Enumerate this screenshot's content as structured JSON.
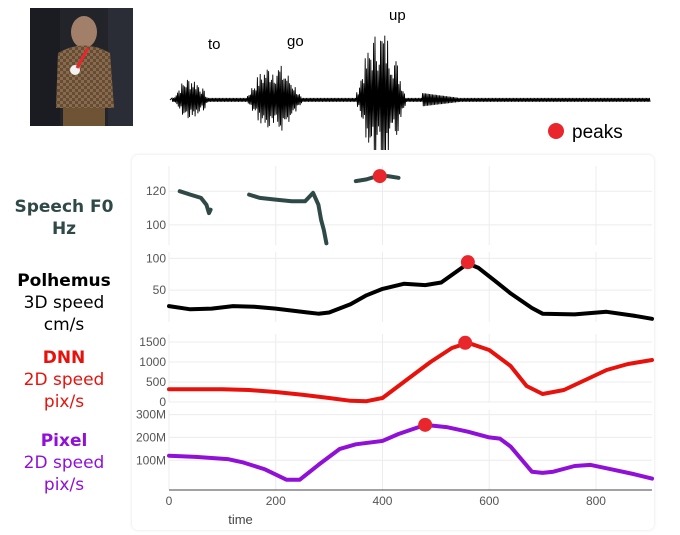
{
  "waveform": {
    "words": [
      "to",
      "go",
      "up"
    ],
    "legend_label": "peaks",
    "peak_color": "#e8262b"
  },
  "panels": [
    {
      "title": "Speech F0",
      "lines": [
        "Hz"
      ],
      "title_color": "#2f4a46",
      "line_color": "#2f4a46",
      "title_bold": true
    },
    {
      "title": "Polhemus",
      "lines": [
        "3D speed",
        "cm/s"
      ],
      "title_color": "#000000",
      "line_color": "#000000",
      "title_bold": true
    },
    {
      "title": "DNN",
      "lines": [
        "2D speed",
        "pix/s"
      ],
      "title_color": "#e8120c",
      "line_color": "#e8120c",
      "title_bold": true
    },
    {
      "title": "Pixel",
      "lines": [
        "2D speed",
        "pix/s"
      ],
      "title_color": "#9010d8",
      "line_color": "#9010d8",
      "title_bold": true
    }
  ],
  "chart_data": [
    {
      "type": "line",
      "title": "",
      "xlabel": "",
      "ylabel": "",
      "xlim": [
        0,
        905
      ],
      "ylim": [
        88,
        135
      ],
      "y_ticks": [
        100,
        120
      ],
      "color": "#2f4a46",
      "segments": [
        {
          "x": [
            20,
            40,
            60,
            70,
            75,
            78
          ],
          "y": [
            120,
            118,
            116,
            112,
            107,
            109
          ]
        },
        {
          "x": [
            150,
            170,
            200,
            230,
            255,
            270,
            280,
            285,
            290,
            295
          ],
          "y": [
            118,
            116,
            115,
            114,
            114,
            119,
            112,
            103,
            97,
            89
          ]
        },
        {
          "x": [
            350,
            370,
            390,
            410,
            430
          ],
          "y": [
            126,
            127,
            129,
            129,
            128
          ]
        }
      ],
      "peak": {
        "x": 395,
        "y": 129
      },
      "grid": true
    },
    {
      "type": "line",
      "xlim": [
        0,
        905
      ],
      "ylim": [
        0,
        110
      ],
      "y_ticks": [
        50,
        100
      ],
      "color": "#000000",
      "x": [
        0,
        40,
        80,
        120,
        160,
        200,
        260,
        280,
        300,
        340,
        370,
        400,
        440,
        480,
        510,
        540,
        560,
        580,
        610,
        640,
        680,
        700,
        760,
        820,
        870,
        905
      ],
      "y": [
        25,
        20,
        21,
        25,
        24,
        21,
        15,
        13,
        15,
        28,
        42,
        52,
        60,
        58,
        62,
        80,
        92,
        85,
        65,
        45,
        22,
        13,
        12,
        16,
        10,
        5
      ],
      "peak": {
        "x": 560,
        "y": 94
      },
      "grid": true
    },
    {
      "type": "line",
      "xlim": [
        0,
        905
      ],
      "ylim": [
        0,
        1700
      ],
      "y_ticks": [
        0,
        500,
        1000,
        1500
      ],
      "color": "#e8120c",
      "x": [
        0,
        50,
        100,
        150,
        200,
        250,
        300,
        340,
        370,
        400,
        440,
        490,
        530,
        560,
        600,
        640,
        670,
        700,
        740,
        780,
        820,
        860,
        905
      ],
      "y": [
        320,
        320,
        320,
        300,
        250,
        180,
        100,
        30,
        20,
        100,
        500,
        1000,
        1350,
        1480,
        1300,
        900,
        400,
        200,
        300,
        550,
        800,
        950,
        1050
      ],
      "peak": {
        "x": 555,
        "y": 1480
      },
      "grid": true
    },
    {
      "type": "line",
      "xlim": [
        0,
        905
      ],
      "ylim": [
        -30,
        320
      ],
      "y_ticks": [
        100,
        200,
        300
      ],
      "y_tick_labels": [
        "100M",
        "200M",
        "300M"
      ],
      "color": "#9010d8",
      "x": [
        0,
        50,
        110,
        140,
        180,
        220,
        245,
        280,
        320,
        350,
        400,
        430,
        480,
        520,
        560,
        600,
        620,
        640,
        680,
        700,
        720,
        760,
        790,
        830,
        870,
        905
      ],
      "y": [
        120,
        115,
        105,
        90,
        60,
        15,
        15,
        80,
        150,
        170,
        185,
        215,
        255,
        245,
        225,
        200,
        195,
        160,
        50,
        45,
        50,
        75,
        80,
        60,
        40,
        20
      ],
      "peak": {
        "x": 480,
        "y": 255
      },
      "grid": true
    }
  ],
  "x_axis": {
    "label": "time",
    "ticks": [
      0,
      200,
      400,
      600,
      800
    ]
  }
}
